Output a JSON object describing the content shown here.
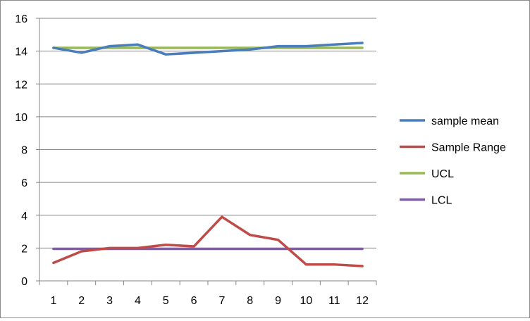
{
  "chart_data": {
    "type": "line",
    "title": "",
    "xlabel": "",
    "ylabel": "",
    "categories": [
      "1",
      "2",
      "3",
      "4",
      "5",
      "6",
      "7",
      "8",
      "9",
      "10",
      "11",
      "12"
    ],
    "ylim": [
      0,
      16
    ],
    "yticks": [
      "0",
      "2",
      "4",
      "6",
      "8",
      "10",
      "12",
      "14",
      "16"
    ],
    "grid": true,
    "legend_position": "right",
    "series": [
      {
        "name": "sample mean",
        "color": "#4a7ebb",
        "values": [
          14.2,
          13.9,
          14.3,
          14.4,
          13.8,
          13.9,
          14.0,
          14.1,
          14.3,
          14.3,
          14.4,
          14.5
        ]
      },
      {
        "name": "Sample Range",
        "color": "#be4b48",
        "values": [
          1.1,
          1.8,
          2.0,
          2.0,
          2.2,
          2.1,
          3.9,
          2.8,
          2.5,
          1.0,
          1.0,
          0.9
        ]
      },
      {
        "name": "UCL",
        "color": "#98b954",
        "values": [
          14.2,
          14.2,
          14.2,
          14.2,
          14.2,
          14.2,
          14.2,
          14.2,
          14.2,
          14.2,
          14.2,
          14.2
        ]
      },
      {
        "name": "LCL",
        "color": "#7d5fa0",
        "values": [
          1.95,
          1.95,
          1.95,
          1.95,
          1.95,
          1.95,
          1.95,
          1.95,
          1.95,
          1.95,
          1.95,
          1.95
        ]
      }
    ]
  }
}
